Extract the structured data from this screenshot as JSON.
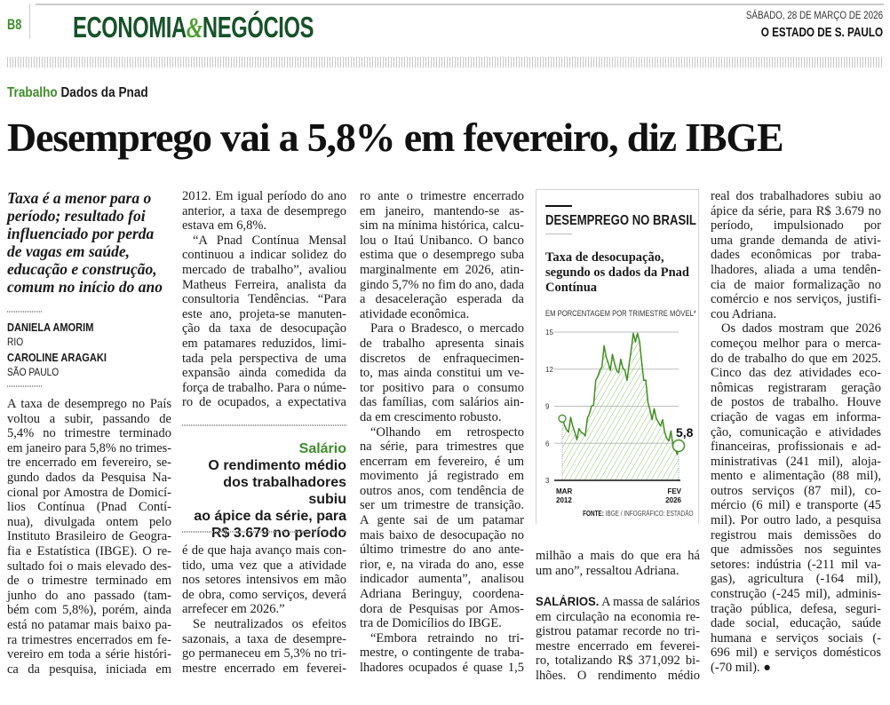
{
  "header": {
    "page": "B8",
    "section_a": "ECONOMIA",
    "amp": "&",
    "section_b": "NEGÓCIOS",
    "date": "SÁBADO, 28 DE MARÇO DE 2026",
    "paper": "O ESTADO DE S. PAULO"
  },
  "kicker": {
    "topic": "Trabalho",
    "subtopic": "Dados da Pnad"
  },
  "headline": "Desemprego vai a 5,8% em fevereiro, diz IBGE",
  "deck": [
    "Taxa é a menor para o",
    "período; resultado foi",
    "influenciado por perda",
    "de vagas em saúde,",
    "educação e construção,",
    "comum no início do ano"
  ],
  "byline": [
    {
      "name": "DANIELA AMORIM",
      "place": "RIO"
    },
    {
      "name": "CAROLINE ARAGAKI",
      "place": "SÃO PAULO"
    }
  ],
  "pullquote": {
    "kicker": "Salário",
    "lines": [
      "O rendimento médio",
      "dos trabalhadores subiu",
      "ao ápice da série, para",
      "R$ 3.679 no período"
    ]
  },
  "columns": {
    "col1": [
      {
        "indent": false,
        "lines": [
          "A taxa de desemprego no País",
          "voltou a subir, passando de",
          "5,4% no trimestre terminado",
          "em janeiro para 5,8% no trimes-",
          "tre encerrado em fevereiro, se-",
          "gundo dados da Pesquisa Na-",
          "cional por Amostra de Domicí-",
          "lios Contínua (Pnad Contí-",
          "nua), divulgada ontem pelo",
          "Instituto Brasileiro de Geogra-",
          "fia e Estatística (IBGE). O re-",
          "sultado foi o mais elevado des-",
          "de o trimestre terminado em",
          "junho do ano passado (tam-",
          "bém com 5,8%), porém, ainda",
          "está no patamar mais baixo pa-",
          "ra trimestres encerrados em fe-",
          "vereiro em toda a série históri-",
          "ca da pesquisa, iniciada em"
        ],
        "cont": true
      }
    ],
    "col2a": [
      {
        "indent": false,
        "lines": [
          "2012. Em igual período do ano",
          "anterior, a taxa de desemprego",
          "estava em 6,8%."
        ]
      },
      {
        "indent": true,
        "lines": [
          "“A Pnad Contínua Mensal",
          "continuou a indicar solidez do",
          "mercado de trabalho”, avaliou",
          "Matheus Ferreira, analista da",
          "consultoria Tendências. “Para",
          "este ano, projeta-se manuten-",
          "ção da taxa de desocupação",
          "em patamares reduzidos, limi-",
          "tada pela perspectiva de uma",
          "expansão ainda comedida da",
          "força de trabalho. Para o núme-",
          "ro de ocupados, a expectativa"
        ],
        "cont": true
      }
    ],
    "col2b": [
      {
        "indent": false,
        "lines": [
          "é de que haja avanço mais con-",
          "tido, uma vez que a atividade",
          "nos setores intensivos em mão",
          "de obra, como serviços, deverá",
          "arrefecer em 2026.”"
        ]
      },
      {
        "indent": true,
        "lines": [
          "Se neutralizados os efeitos",
          "sazonais, a taxa de desempre-",
          "go permaneceu em 5,3% no tri-",
          "mestre encerrado em feverei-"
        ],
        "cont": true
      }
    ],
    "col3": [
      {
        "indent": false,
        "lines": [
          "ro ante o trimestre encerrado",
          "em janeiro, mantendo-se as-",
          "sim na mínima histórica, calcu-",
          "lou o Itaú Unibanco. O banco",
          "estima que o desemprego suba",
          "marginalmente em 2026, atin-",
          "gindo 5,7% no fim do ano, dada",
          "a desaceleração esperada da",
          "atividade econômica."
        ]
      },
      {
        "indent": true,
        "lines": [
          "Para o Bradesco, o mercado",
          "de trabalho apresenta sinais",
          "discretos de enfraquecimen-",
          "to, mas ainda constitui um ve-",
          "tor positivo para o consumo",
          "das famílias, com salários ain-",
          "da em crescimento robusto."
        ]
      },
      {
        "indent": true,
        "lines": [
          "“Olhando em retrospecto",
          "na série, para trimestres que",
          "encerram em fevereiro, é um",
          "movimento já registrado em",
          "outros anos, com tendência de",
          "ser um trimestre de transição.",
          "A gente sai de um patamar",
          "mais baixo de desocupação no",
          "último trimestre do ano ante-",
          "rior, e, na virada do ano, esse",
          "indicador aumenta”, analisou",
          "Adriana Beringuy, coordena-",
          "dora de Pesquisas por Amos-",
          "tra de Domicílios do IBGE."
        ]
      },
      {
        "indent": true,
        "lines": [
          "“Embora retraindo no tri-",
          "mestre, o contingente de traba-",
          "lhadores ocupados é quase 1,5"
        ],
        "cont": true
      }
    ],
    "col4a": [
      {
        "indent": false,
        "lines": [
          "milhão a mais do que era há",
          "um ano”, ressaltou Adriana."
        ]
      }
    ],
    "col4b": [
      {
        "indent": false,
        "lead": "SALÁRIOS.",
        "lines": [
          " A massa de salários",
          "em circulação na economia re-",
          "gistrou patamar recorde no tri-",
          "mestre encerrado em feverei-",
          "ro, totalizando R$ 371,092 bi-",
          "lhões. O rendimento médio"
        ],
        "cont": true
      }
    ],
    "col5": [
      {
        "indent": false,
        "lines": [
          "real dos trabalhadores subiu ao",
          "ápice da série, para R$ 3.679 no",
          "período, impulsionado por",
          "uma grande demanda de ativi-",
          "dades econômicas por traba-",
          "lhadores, aliada a uma tendên-",
          "cia de maior formalização no",
          "comércio e nos serviços, justifi-",
          "cou Adriana."
        ]
      },
      {
        "indent": true,
        "lines": [
          "Os dados mostram que 2026",
          "começou melhor para o merca-",
          "do de trabalho do que em 2025.",
          "Cinco das dez atividades eco-",
          "nômicas registraram geração",
          "de postos de trabalho. Houve",
          "criação de vagas em informa-",
          "ção, comunicação e atividades",
          "financeiras, profissionais e ad-",
          "ministrativas (241 mil), aloja-",
          "mento e alimentação (88 mil),",
          "outros serviços (87 mil), co-",
          "mércio (6 mil) e transporte (45",
          "mil). Por outro lado, a pesquisa",
          "registrou mais demissões do",
          "que admissões nos seguintes",
          "setores: indústria (-211 mil va-",
          "gas), agricultura (-164 mil),",
          "construção (-245 mil), adminis-",
          "tração pública, defesa, seguri-",
          "dade social, educação, saúde",
          "humana e serviços sociais (-",
          "696 mil) e serviços domésticos",
          "(-70 mil). ●"
        ]
      }
    ]
  },
  "chart_data": {
    "type": "area",
    "kicker": "DESEMPREGO NO BRASIL",
    "title": "Taxa de desocupação, segundo os dados da Pnad Contínua",
    "unit": "EM PORCENTAGEM POR TRIMESTRE MÓVEL*",
    "source_label": "FONTE:",
    "source": "IBGE / INFOGRÁFICO: ESTADÃO",
    "x_start_label": [
      "MAR",
      "2012"
    ],
    "x_end_label": [
      "FEV",
      "2026"
    ],
    "end_value_label": "5,8",
    "ylim": [
      3,
      15
    ],
    "yticks": [
      3,
      6,
      9,
      12,
      15
    ],
    "grid": true,
    "colors": {
      "line": "#3f8f22",
      "hatch": "#8fc56b"
    },
    "points": [
      [
        "2012-03",
        8.0
      ],
      [
        "2012-06",
        7.5
      ],
      [
        "2012-09",
        7.1
      ],
      [
        "2012-12",
        6.9
      ],
      [
        "2013-03",
        8.1
      ],
      [
        "2013-06",
        7.4
      ],
      [
        "2013-09",
        6.9
      ],
      [
        "2013-12",
        6.3
      ],
      [
        "2014-03",
        7.2
      ],
      [
        "2014-06",
        6.9
      ],
      [
        "2014-09",
        6.8
      ],
      [
        "2014-12",
        6.6
      ],
      [
        "2015-03",
        8.0
      ],
      [
        "2015-06",
        8.4
      ],
      [
        "2015-09",
        9.0
      ],
      [
        "2015-12",
        9.1
      ],
      [
        "2016-03",
        11.1
      ],
      [
        "2016-06",
        11.4
      ],
      [
        "2016-09",
        11.9
      ],
      [
        "2016-12",
        12.2
      ],
      [
        "2017-03",
        13.9
      ],
      [
        "2017-06",
        13.0
      ],
      [
        "2017-09",
        12.5
      ],
      [
        "2017-12",
        11.9
      ],
      [
        "2018-03",
        13.2
      ],
      [
        "2018-06",
        12.5
      ],
      [
        "2018-09",
        11.9
      ],
      [
        "2018-12",
        11.7
      ],
      [
        "2019-03",
        12.8
      ],
      [
        "2019-06",
        12.1
      ],
      [
        "2019-09",
        11.9
      ],
      [
        "2019-12",
        11.1
      ],
      [
        "2020-03",
        12.4
      ],
      [
        "2020-06",
        13.6
      ],
      [
        "2020-09",
        14.9
      ],
      [
        "2020-12",
        14.2
      ],
      [
        "2021-03",
        14.9
      ],
      [
        "2021-06",
        14.2
      ],
      [
        "2021-09",
        12.6
      ],
      [
        "2021-12",
        11.1
      ],
      [
        "2022-03",
        11.1
      ],
      [
        "2022-06",
        9.3
      ],
      [
        "2022-09",
        8.7
      ],
      [
        "2022-12",
        7.9
      ],
      [
        "2023-03",
        8.8
      ],
      [
        "2023-06",
        8.0
      ],
      [
        "2023-09",
        7.7
      ],
      [
        "2023-12",
        7.4
      ],
      [
        "2024-03",
        7.9
      ],
      [
        "2024-06",
        6.9
      ],
      [
        "2024-09",
        6.4
      ],
      [
        "2024-12",
        6.2
      ],
      [
        "2025-03",
        7.0
      ],
      [
        "2025-06",
        5.8
      ],
      [
        "2025-09",
        5.6
      ],
      [
        "2025-12",
        5.1
      ],
      [
        "2026-02",
        5.8
      ]
    ]
  }
}
